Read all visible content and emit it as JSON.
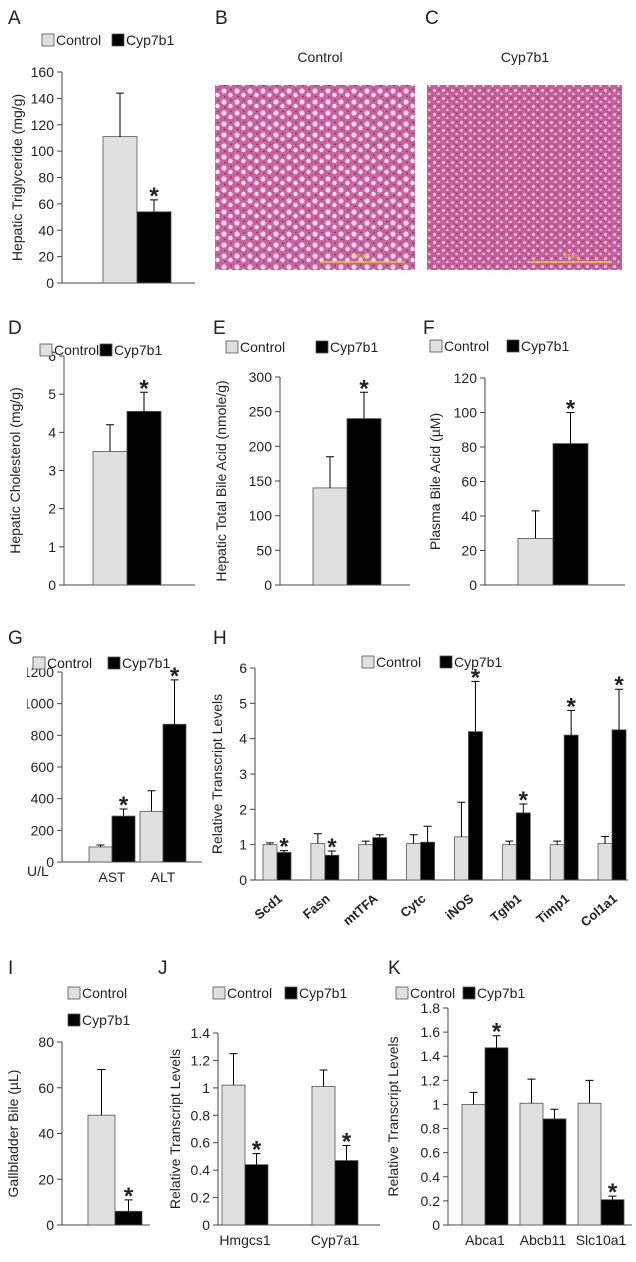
{
  "chart_data": [
    {
      "panel": "A",
      "type": "bar",
      "ylabel": "Hepatic Triglyceride (mg/g)",
      "categories": [
        null
      ],
      "ylim": [
        0,
        160
      ],
      "yticks": [
        0,
        20,
        40,
        60,
        80,
        100,
        120,
        140,
        160
      ],
      "series": [
        {
          "name": "Control",
          "color": "#e0e0e0",
          "values": [
            111
          ],
          "errors": [
            33
          ]
        },
        {
          "name": "Cyp7b1",
          "color": "#000000",
          "values": [
            54
          ],
          "errors": [
            9
          ],
          "significance": [
            "*"
          ]
        }
      ]
    },
    {
      "panel": "D",
      "type": "bar",
      "ylabel": "Hepatic Cholesterol (mg/g)",
      "categories": [
        null
      ],
      "ylim": [
        0,
        6
      ],
      "yticks": [
        0,
        1,
        2,
        3,
        4,
        5,
        6
      ],
      "series": [
        {
          "name": "Control",
          "color": "#e0e0e0",
          "values": [
            3.5
          ],
          "errors": [
            0.7
          ]
        },
        {
          "name": "Cyp7b1",
          "color": "#000000",
          "values": [
            4.55
          ],
          "errors": [
            0.5
          ],
          "significance": [
            "*"
          ]
        }
      ]
    },
    {
      "panel": "E",
      "type": "bar",
      "ylabel": "Hepatic Total Bile Acid (nmole/g)",
      "categories": [
        null
      ],
      "ylim": [
        0,
        300
      ],
      "yticks": [
        0,
        50,
        100,
        150,
        200,
        250,
        300
      ],
      "series": [
        {
          "name": "Control",
          "color": "#e0e0e0",
          "values": [
            140
          ],
          "errors": [
            45
          ]
        },
        {
          "name": "Cyp7b1",
          "color": "#000000",
          "values": [
            240
          ],
          "errors": [
            38
          ],
          "significance": [
            "*"
          ]
        }
      ]
    },
    {
      "panel": "F",
      "type": "bar",
      "ylabel": "Plasma Bile Acid (µM)",
      "categories": [
        null
      ],
      "ylim": [
        0,
        120
      ],
      "yticks": [
        0,
        20,
        40,
        60,
        80,
        100,
        120
      ],
      "series": [
        {
          "name": "Control",
          "color": "#e0e0e0",
          "values": [
            27
          ],
          "errors": [
            16
          ]
        },
        {
          "name": "Cyp7b1",
          "color": "#000000",
          "values": [
            82
          ],
          "errors": [
            18
          ],
          "significance": [
            "*"
          ]
        }
      ]
    },
    {
      "panel": "G",
      "type": "bar",
      "annotation": "U/L",
      "categories": [
        "AST",
        "ALT"
      ],
      "ylim": [
        0,
        1200
      ],
      "yticks": [
        0,
        200,
        400,
        600,
        800,
        1000,
        1200
      ],
      "series": [
        {
          "name": "Control",
          "color": "#e0e0e0",
          "values": [
            95,
            320
          ],
          "errors": [
            12,
            130
          ]
        },
        {
          "name": "Cyp7b1",
          "color": "#000000",
          "values": [
            290,
            870
          ],
          "errors": [
            45,
            280
          ],
          "significance": [
            "*",
            "*"
          ]
        }
      ]
    },
    {
      "panel": "H",
      "type": "bar",
      "ylabel": "Relative Transcript Levels",
      "categories": [
        "Scd1",
        "Fasn",
        "mtTFA",
        "Cytc",
        "iNOS",
        "Tgfb1",
        "Timp1",
        "Col1a1"
      ],
      "ylim": [
        0,
        6
      ],
      "yticks": [
        0,
        1,
        2,
        3,
        4,
        5,
        6
      ],
      "series": [
        {
          "name": "Control",
          "color": "#e0e0e0",
          "values": [
            1.0,
            1.03,
            1.0,
            1.03,
            1.22,
            1.0,
            1.0,
            1.03
          ],
          "errors": [
            0.05,
            0.28,
            0.1,
            0.25,
            0.98,
            0.1,
            0.1,
            0.2
          ]
        },
        {
          "name": "Cyp7b1",
          "color": "#000000",
          "values": [
            0.78,
            0.7,
            1.2,
            1.07,
            4.2,
            1.9,
            4.1,
            4.25
          ],
          "errors": [
            0.05,
            0.12,
            0.08,
            0.45,
            1.42,
            0.25,
            0.7,
            1.15
          ],
          "significance": [
            "*",
            "*",
            null,
            null,
            "*",
            "*",
            "*",
            "*"
          ]
        }
      ]
    },
    {
      "panel": "I",
      "type": "bar",
      "ylabel": "Gallbladder Bile (µL)",
      "categories": [
        null
      ],
      "ylim": [
        0,
        80
      ],
      "yticks": [
        0,
        20,
        40,
        60,
        80
      ],
      "series": [
        {
          "name": "Control",
          "color": "#e0e0e0",
          "values": [
            48
          ],
          "errors": [
            20
          ]
        },
        {
          "name": "Cyp7b1",
          "color": "#000000",
          "values": [
            6
          ],
          "errors": [
            5
          ],
          "significance": [
            "*"
          ]
        }
      ]
    },
    {
      "panel": "J",
      "type": "bar",
      "ylabel": "Relative Transcript Levels",
      "categories": [
        "Hmgcs1",
        "Cyp7a1"
      ],
      "ylim": [
        0,
        1.4
      ],
      "yticks": [
        0,
        0.2,
        0.4,
        0.6,
        0.8,
        1,
        1.2,
        1.4
      ],
      "series": [
        {
          "name": "Control",
          "color": "#e0e0e0",
          "values": [
            1.02,
            1.01
          ],
          "errors": [
            0.23,
            0.12
          ]
        },
        {
          "name": "Cyp7b1",
          "color": "#000000",
          "values": [
            0.44,
            0.47
          ],
          "errors": [
            0.08,
            0.11
          ],
          "significance": [
            "*",
            "*"
          ]
        }
      ]
    },
    {
      "panel": "K",
      "type": "bar",
      "ylabel": "Relative Transcript Levels",
      "categories": [
        "Abca1",
        "Abcb11",
        "Slc10a1"
      ],
      "ylim": [
        0,
        1.8
      ],
      "yticks": [
        0,
        0.2,
        0.4,
        0.6,
        0.8,
        1,
        1.2,
        1.4,
        1.6,
        1.8
      ],
      "series": [
        {
          "name": "Control",
          "color": "#e0e0e0",
          "values": [
            1.0,
            1.01,
            1.01
          ],
          "errors": [
            0.1,
            0.2,
            0.19
          ]
        },
        {
          "name": "Cyp7b1",
          "color": "#000000",
          "values": [
            1.47,
            0.88,
            0.21
          ],
          "errors": [
            0.1,
            0.08,
            0.03
          ],
          "significance": [
            "*",
            null,
            "*"
          ]
        }
      ]
    }
  ],
  "images": [
    {
      "panel": "B",
      "title": "Control",
      "scale_label": "500µm"
    },
    {
      "panel": "C",
      "title": "Cyp7b1",
      "scale_label": "500µm"
    }
  ]
}
